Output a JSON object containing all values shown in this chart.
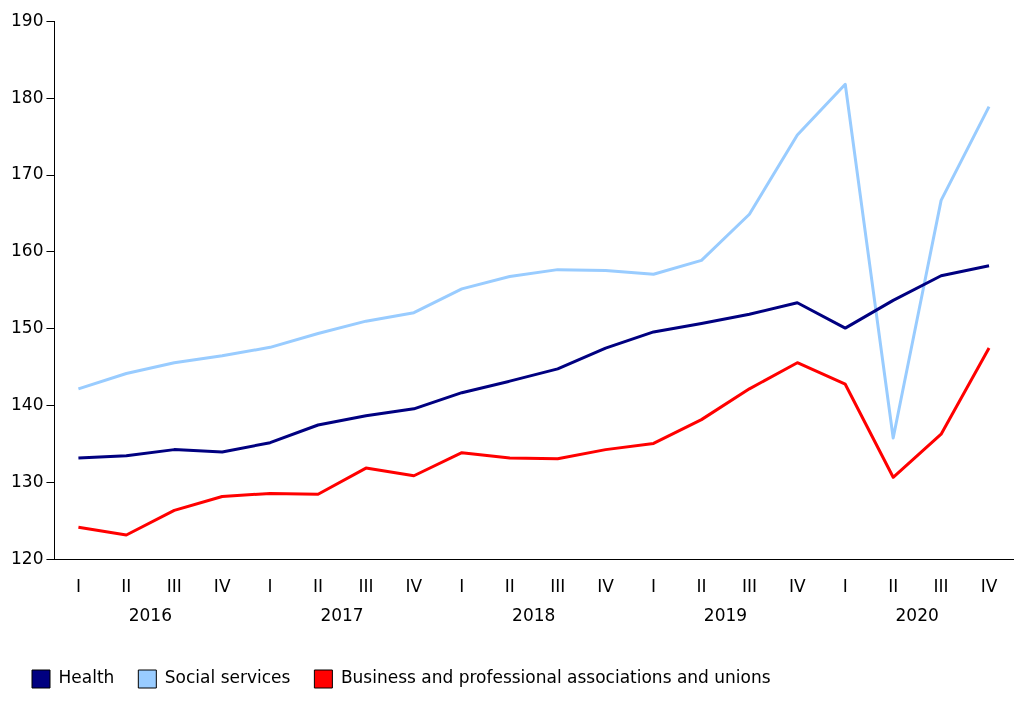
{
  "chart_data": {
    "type": "line",
    "categories": [
      "I",
      "II",
      "III",
      "IV",
      "I",
      "II",
      "III",
      "IV",
      "I",
      "II",
      "III",
      "IV",
      "I",
      "II",
      "III",
      "IV",
      "I",
      "II",
      "III",
      "IV"
    ],
    "annotations": [
      "2016",
      "2017",
      "2018",
      "2019",
      "2020"
    ],
    "series": [
      {
        "name": "Health",
        "color": "#000080",
        "values": [
          133.2,
          133.5,
          134.3,
          134.0,
          135.2,
          137.5,
          138.7,
          139.6,
          141.7,
          143.2,
          144.8,
          147.5,
          149.6,
          150.7,
          151.9,
          153.4,
          150.1,
          153.7,
          156.9,
          158.2
        ]
      },
      {
        "name": "Social services",
        "color": "#99ccff",
        "values": [
          142.2,
          144.2,
          145.6,
          146.5,
          147.6,
          149.4,
          151.0,
          152.1,
          155.2,
          156.8,
          157.7,
          157.6,
          157.1,
          158.9,
          164.9,
          175.2,
          181.8,
          135.8,
          166.7,
          178.9
        ]
      },
      {
        "name": "Business and professional associations and unions",
        "color": "#ff0000",
        "values": [
          124.2,
          123.2,
          126.4,
          128.2,
          128.6,
          128.5,
          131.9,
          130.9,
          133.9,
          133.2,
          133.1,
          134.3,
          135.1,
          138.2,
          142.2,
          145.6,
          142.8,
          130.7,
          136.3,
          147.5
        ]
      }
    ],
    "ylim": [
      120,
      190
    ],
    "yticks": [
      120,
      130,
      140,
      150,
      160,
      170,
      180,
      190
    ],
    "grid": false,
    "legend": "bottom",
    "marker": "none",
    "line_style": "solid"
  }
}
